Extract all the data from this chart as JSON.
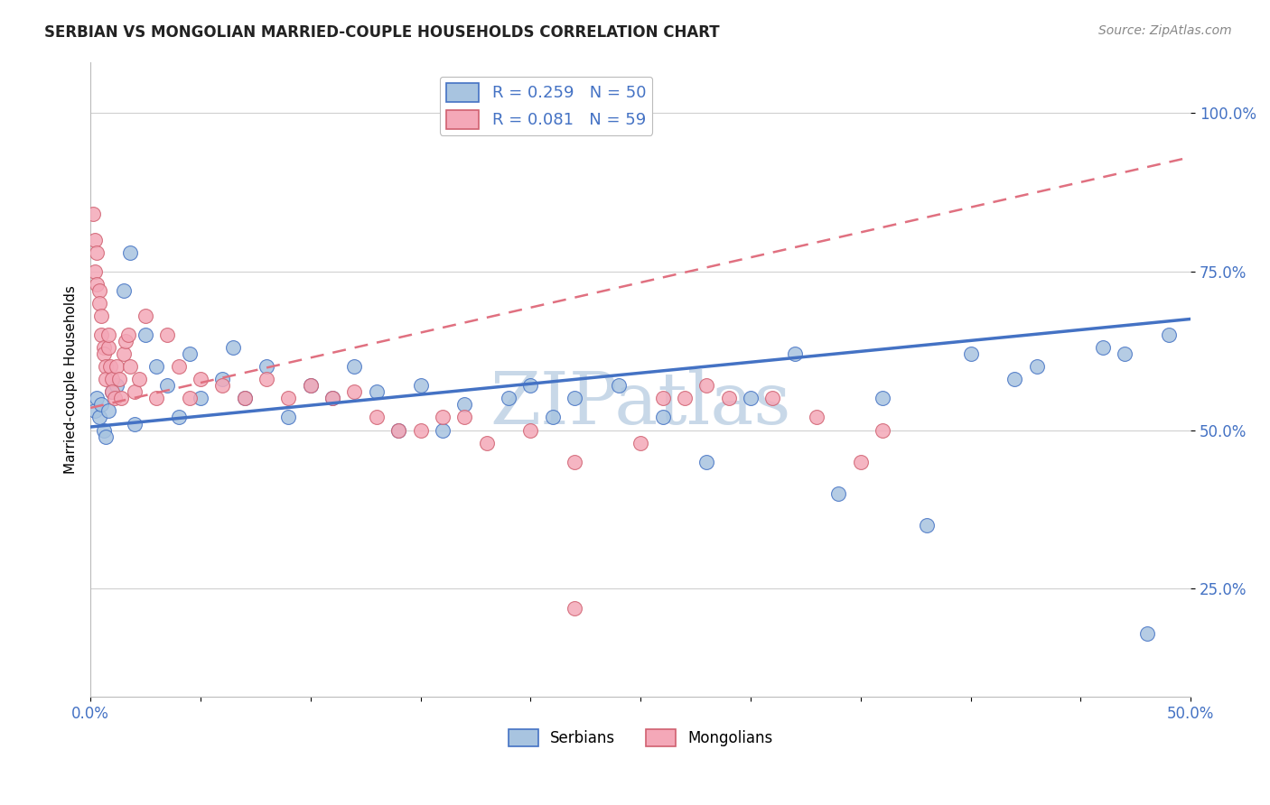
{
  "title": "SERBIAN VS MONGOLIAN MARRIED-COUPLE HOUSEHOLDS CORRELATION CHART",
  "source_text": "Source: ZipAtlas.com",
  "ylabel": "Married-couple Households",
  "xlim": [
    0.0,
    0.5
  ],
  "ylim": [
    0.08,
    1.08
  ],
  "xticks": [
    0.0,
    0.05,
    0.1,
    0.15,
    0.2,
    0.25,
    0.3,
    0.35,
    0.4,
    0.45,
    0.5
  ],
  "yticks": [
    0.25,
    0.5,
    0.75,
    1.0
  ],
  "ytick_labels": [
    "25.0%",
    "50.0%",
    "75.0%",
    "100.0%"
  ],
  "xtick_labels": [
    "0.0%",
    "",
    "",
    "",
    "",
    "",
    "",
    "",
    "",
    "",
    "50.0%"
  ],
  "legend_r1": "R = 0.259   N = 50",
  "legend_r2": "R = 0.081   N = 59",
  "color_serbian": "#a8c4e0",
  "color_mongolian": "#f4a8b8",
  "color_line_serbian": "#4472c4",
  "color_line_mongolian": "#e07080",
  "watermark": "ZIPatlas",
  "watermark_color": "#c8d8e8",
  "serbian_x": [
    0.002,
    0.003,
    0.004,
    0.005,
    0.006,
    0.007,
    0.008,
    0.01,
    0.012,
    0.015,
    0.018,
    0.02,
    0.025,
    0.03,
    0.035,
    0.04,
    0.045,
    0.05,
    0.06,
    0.065,
    0.07,
    0.08,
    0.09,
    0.1,
    0.11,
    0.12,
    0.13,
    0.14,
    0.15,
    0.16,
    0.17,
    0.19,
    0.2,
    0.21,
    0.22,
    0.24,
    0.26,
    0.28,
    0.3,
    0.32,
    0.34,
    0.36,
    0.38,
    0.4,
    0.42,
    0.43,
    0.46,
    0.47,
    0.48,
    0.49
  ],
  "serbian_y": [
    0.53,
    0.55,
    0.52,
    0.54,
    0.5,
    0.49,
    0.53,
    0.56,
    0.57,
    0.72,
    0.78,
    0.51,
    0.65,
    0.6,
    0.57,
    0.52,
    0.62,
    0.55,
    0.58,
    0.63,
    0.55,
    0.6,
    0.52,
    0.57,
    0.55,
    0.6,
    0.56,
    0.5,
    0.57,
    0.5,
    0.54,
    0.55,
    0.57,
    0.52,
    0.55,
    0.57,
    0.52,
    0.45,
    0.55,
    0.62,
    0.4,
    0.55,
    0.35,
    0.62,
    0.58,
    0.6,
    0.63,
    0.62,
    0.18,
    0.65
  ],
  "mongolian_x": [
    0.001,
    0.002,
    0.002,
    0.003,
    0.003,
    0.004,
    0.004,
    0.005,
    0.005,
    0.006,
    0.006,
    0.007,
    0.007,
    0.008,
    0.008,
    0.009,
    0.01,
    0.01,
    0.011,
    0.012,
    0.013,
    0.014,
    0.015,
    0.016,
    0.017,
    0.018,
    0.02,
    0.022,
    0.025,
    0.03,
    0.035,
    0.04,
    0.045,
    0.05,
    0.06,
    0.07,
    0.08,
    0.09,
    0.1,
    0.11,
    0.12,
    0.13,
    0.14,
    0.15,
    0.16,
    0.17,
    0.18,
    0.2,
    0.22,
    0.25,
    0.26,
    0.27,
    0.28,
    0.29,
    0.31,
    0.33,
    0.35,
    0.36,
    0.22
  ],
  "mongolian_y": [
    0.84,
    0.8,
    0.75,
    0.78,
    0.73,
    0.72,
    0.7,
    0.68,
    0.65,
    0.63,
    0.62,
    0.6,
    0.58,
    0.63,
    0.65,
    0.6,
    0.58,
    0.56,
    0.55,
    0.6,
    0.58,
    0.55,
    0.62,
    0.64,
    0.65,
    0.6,
    0.56,
    0.58,
    0.68,
    0.55,
    0.65,
    0.6,
    0.55,
    0.58,
    0.57,
    0.55,
    0.58,
    0.55,
    0.57,
    0.55,
    0.56,
    0.52,
    0.5,
    0.5,
    0.52,
    0.52,
    0.48,
    0.5,
    0.45,
    0.48,
    0.55,
    0.55,
    0.57,
    0.55,
    0.55,
    0.52,
    0.45,
    0.5,
    0.22
  ],
  "trend_serbian_x0": 0.0,
  "trend_serbian_x1": 0.5,
  "trend_serbian_y0": 0.505,
  "trend_serbian_y1": 0.675,
  "trend_mongolian_x0": 0.0,
  "trend_mongolian_x1": 0.5,
  "trend_mongolian_y0": 0.535,
  "trend_mongolian_y1": 0.93
}
